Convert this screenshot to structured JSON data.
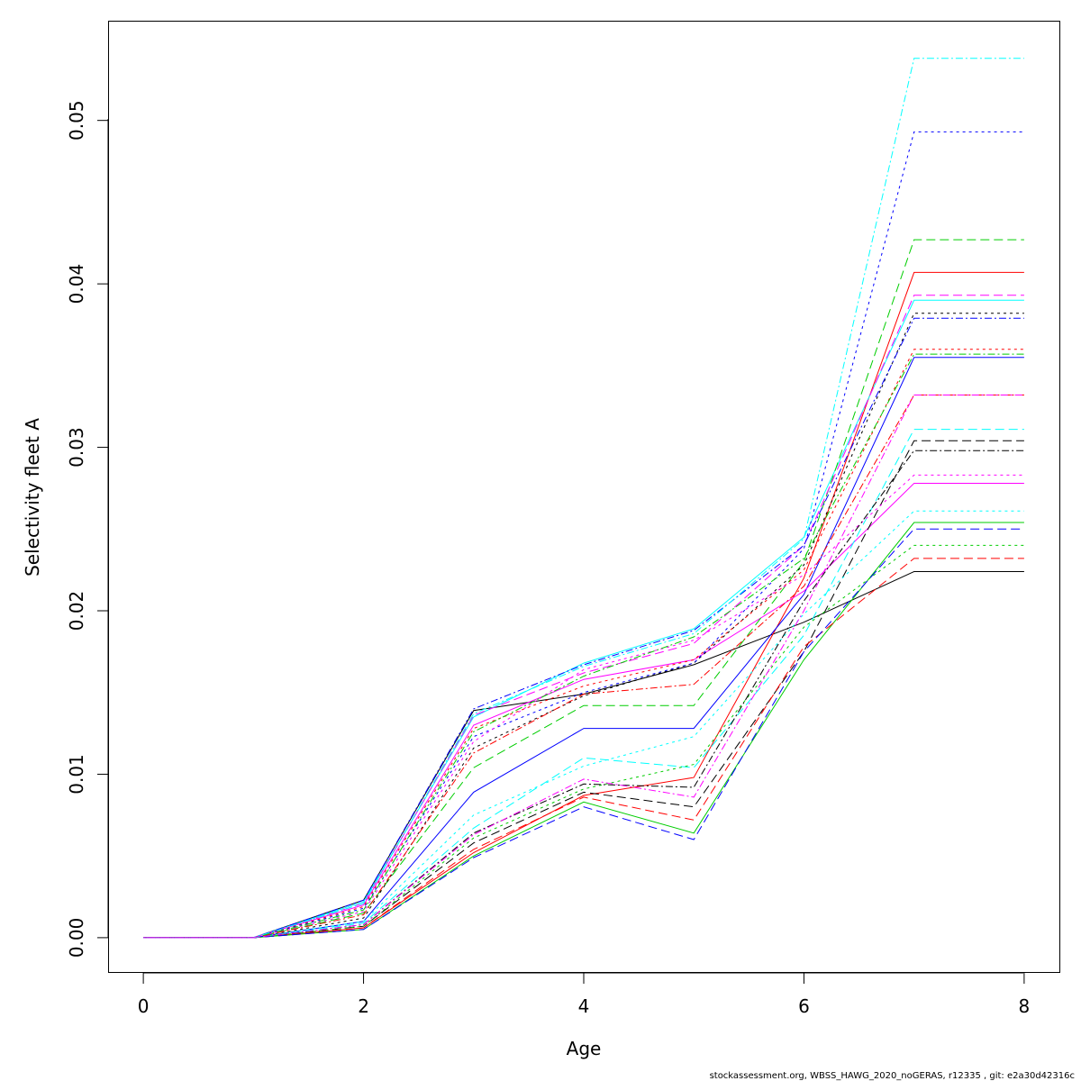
{
  "footer": "stockassessment.org, WBSS_HAWG_2020_noGERAS, r12335 , git: e2a30d42316c",
  "chart_data": {
    "type": "line",
    "title": "",
    "xlabel": "Age",
    "ylabel": "Selectivity fleet A",
    "xlim": [
      -0.32,
      8.32
    ],
    "ylim": [
      -0.0021,
      0.0561
    ],
    "xticks": [
      "0",
      "2",
      "4",
      "6",
      "8"
    ],
    "yticks": [
      "0.00",
      "0.01",
      "0.02",
      "0.03",
      "0.04",
      "0.05"
    ],
    "grid": false,
    "legend": "none",
    "x": [
      0,
      1,
      2,
      3,
      4,
      5,
      6,
      7,
      8
    ],
    "series": [
      {
        "color": "#000000",
        "dash": "",
        "values": [
          0,
          0,
          0.0023,
          0.0139,
          0.0149,
          0.0167,
          0.0193,
          0.0224,
          0.0224
        ]
      },
      {
        "color": "#ff0000",
        "dash": "",
        "values": [
          0,
          0,
          0.0006,
          0.0052,
          0.0087,
          0.0098,
          0.022,
          0.0407,
          0.0407
        ]
      },
      {
        "color": "#00cd00",
        "dash": "",
        "values": [
          0,
          0,
          0.0005,
          0.005,
          0.0083,
          0.0064,
          0.017,
          0.0254,
          0.0254
        ]
      },
      {
        "color": "#0000ff",
        "dash": "",
        "values": [
          0,
          0,
          0.001,
          0.0089,
          0.0128,
          0.0128,
          0.021,
          0.0355,
          0.0355
        ]
      },
      {
        "color": "#00ffff",
        "dash": "",
        "values": [
          0,
          0,
          0.0022,
          0.0135,
          0.0168,
          0.0189,
          0.0245,
          0.039,
          0.039
        ]
      },
      {
        "color": "#ff00ff",
        "dash": "",
        "values": [
          0,
          0,
          0.002,
          0.013,
          0.0158,
          0.017,
          0.0212,
          0.0278,
          0.0278
        ]
      },
      {
        "color": "#000000",
        "dash": "10,5",
        "values": [
          0,
          0,
          0.0007,
          0.0058,
          0.0089,
          0.008,
          0.0175,
          0.0304,
          0.0304
        ]
      },
      {
        "color": "#ff0000",
        "dash": "10,5",
        "values": [
          0,
          0,
          0.0006,
          0.0054,
          0.0086,
          0.0072,
          0.0178,
          0.0232,
          0.0232
        ]
      },
      {
        "color": "#00cd00",
        "dash": "10,5",
        "values": [
          0,
          0,
          0.0015,
          0.0104,
          0.0142,
          0.0142,
          0.023,
          0.0427,
          0.0427
        ]
      },
      {
        "color": "#0000ff",
        "dash": "10,5",
        "values": [
          0,
          0,
          0.0005,
          0.0049,
          0.008,
          0.006,
          0.0175,
          0.025,
          0.025
        ]
      },
      {
        "color": "#00ffff",
        "dash": "10,5",
        "values": [
          0,
          0,
          0.0009,
          0.0067,
          0.011,
          0.0104,
          0.0185,
          0.0311,
          0.0311
        ]
      },
      {
        "color": "#ff00ff",
        "dash": "10,5",
        "values": [
          0,
          0,
          0.0021,
          0.0136,
          0.0162,
          0.018,
          0.024,
          0.0393,
          0.0393
        ]
      },
      {
        "color": "#000000",
        "dash": "3,4",
        "values": [
          0,
          0,
          0.0012,
          0.0116,
          0.0148,
          0.0168,
          0.0228,
          0.0382,
          0.0382
        ]
      },
      {
        "color": "#ff0000",
        "dash": "3,4",
        "values": [
          0,
          0,
          0.0019,
          0.0128,
          0.0154,
          0.017,
          0.0225,
          0.036,
          0.036
        ]
      },
      {
        "color": "#00cd00",
        "dash": "3,4",
        "values": [
          0,
          0,
          0.0007,
          0.0061,
          0.0091,
          0.0106,
          0.019,
          0.024,
          0.024
        ]
      },
      {
        "color": "#0000ff",
        "dash": "3,4",
        "values": [
          0,
          0,
          0.0018,
          0.0123,
          0.015,
          0.0168,
          0.0238,
          0.0493,
          0.0493
        ]
      },
      {
        "color": "#00ffff",
        "dash": "3,4",
        "values": [
          0,
          0,
          0.001,
          0.0075,
          0.0105,
          0.0123,
          0.0198,
          0.0261,
          0.0261
        ]
      },
      {
        "color": "#ff00ff",
        "dash": "3,4",
        "values": [
          0,
          0,
          0.0016,
          0.012,
          0.0164,
          0.0182,
          0.0222,
          0.0283,
          0.0283
        ]
      },
      {
        "color": "#000000",
        "dash": "2,3,8,3",
        "values": [
          0,
          0,
          0.0008,
          0.0064,
          0.0094,
          0.0092,
          0.0206,
          0.0298,
          0.0298
        ]
      },
      {
        "color": "#ff0000",
        "dash": "2,3,8,3",
        "values": [
          0,
          0,
          0.0014,
          0.0113,
          0.0149,
          0.0155,
          0.0215,
          0.0332,
          0.0332
        ]
      },
      {
        "color": "#00cd00",
        "dash": "2,3,8,3",
        "values": [
          0,
          0,
          0.0017,
          0.0126,
          0.016,
          0.0184,
          0.0232,
          0.0357,
          0.0357
        ]
      },
      {
        "color": "#0000ff",
        "dash": "2,3,8,3",
        "values": [
          0,
          0,
          0.0023,
          0.014,
          0.0167,
          0.0188,
          0.024,
          0.0379,
          0.0379
        ]
      },
      {
        "color": "#00ffff",
        "dash": "2,3,8,3",
        "values": [
          0,
          0,
          0.0021,
          0.0137,
          0.0166,
          0.0186,
          0.0244,
          0.0538,
          0.0538
        ]
      },
      {
        "color": "#ff00ff",
        "dash": "2,3,8,3",
        "values": [
          0,
          0,
          0.0008,
          0.0063,
          0.0097,
          0.0086,
          0.02,
          0.0332,
          0.0332
        ]
      }
    ]
  }
}
